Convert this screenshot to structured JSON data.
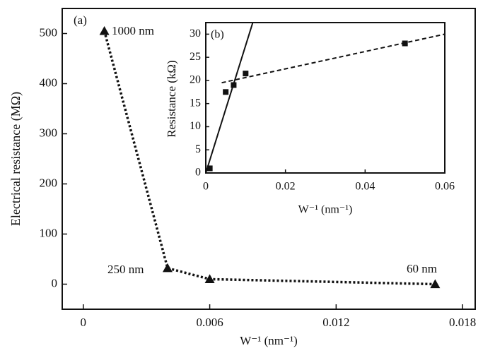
{
  "chart_data": [
    {
      "type": "line",
      "x_label": "W⁻¹ (nm⁻¹)",
      "y_label": "Electrical resistance (MΩ)",
      "annotations": [
        "(a)",
        "1000 nm",
        "250 nm",
        "60 nm"
      ],
      "x": [
        0.001,
        0.004,
        0.006,
        0.0167
      ],
      "values": [
        505,
        32,
        10,
        0
      ],
      "marker": "triangle",
      "line_style": "dotted",
      "color": "#111111",
      "xlim": [
        -0.001,
        0.0186
      ],
      "xticks": [
        0,
        0.006,
        0.012,
        0.018
      ],
      "ylim": [
        -50,
        550
      ],
      "yticks": [
        0,
        100,
        200,
        300,
        400,
        500
      ]
    },
    {
      "type": "scatter",
      "x_label": "W⁻¹ (nm⁻¹)",
      "y_label": "Resistance (kΩ)",
      "annotations": [
        "(b)"
      ],
      "x": [
        0.001,
        0.005,
        0.007,
        0.01,
        0.05
      ],
      "values": [
        1,
        17.5,
        19,
        21.5,
        28
      ],
      "marker": "square",
      "color": "#111111",
      "fits": [
        {
          "x": [
            0,
            0.0118
          ],
          "values": [
            0,
            32.5
          ],
          "line_style": "solid"
        },
        {
          "x": [
            0.004,
            0.06
          ],
          "values": [
            19.5,
            30
          ],
          "line_style": "dashed"
        }
      ],
      "xlim": [
        0,
        0.06
      ],
      "xticks": [
        0,
        0.02,
        0.04,
        0.06
      ],
      "ylim": [
        0,
        32.5
      ],
      "yticks": [
        0,
        5,
        10,
        15,
        20,
        25,
        30
      ]
    }
  ]
}
